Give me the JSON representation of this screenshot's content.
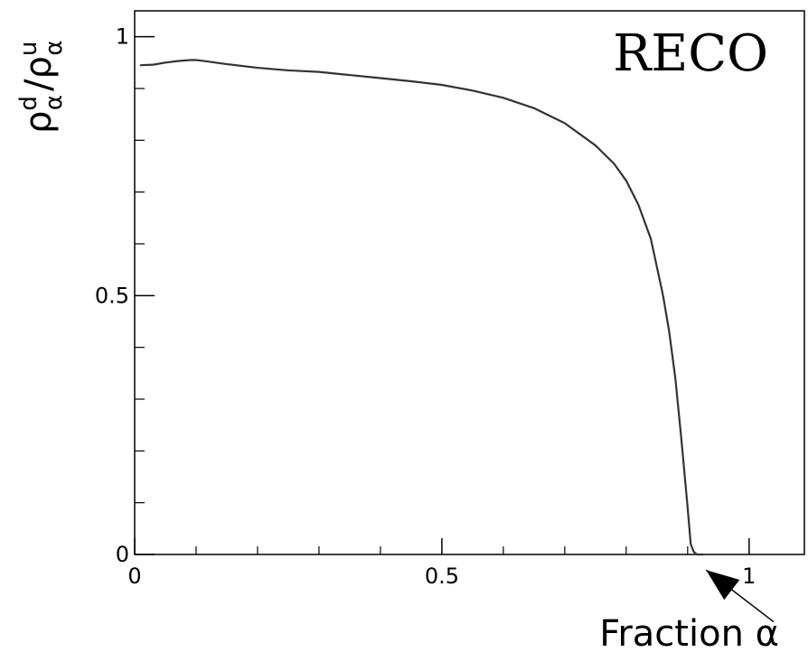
{
  "chart_data": {
    "type": "line",
    "title": "",
    "annotation": "RECO",
    "ylabel": {
      "main": "ρ",
      "sup_num": "d",
      "sub_num": "α",
      "slash": "/",
      "main_den": "ρ",
      "sup_den": "u",
      "sub_den": "α"
    },
    "xlabel": "Fraction α",
    "xlim": [
      0,
      1.09
    ],
    "ylim": [
      0,
      1.05
    ],
    "x_major_ticks": [
      0,
      0.5,
      1
    ],
    "x_major_tick_labels": [
      "0",
      "0.5",
      "1"
    ],
    "x_minor_ticks": [
      0.1,
      0.2,
      0.3,
      0.4,
      0.6,
      0.7,
      0.8,
      0.9
    ],
    "y_major_ticks": [
      0,
      0.5,
      1
    ],
    "y_major_tick_labels": [
      "0",
      "0.5",
      "1"
    ],
    "y_minor_ticks": [
      0.1,
      0.2,
      0.3,
      0.4,
      0.6,
      0.7,
      0.8,
      0.9
    ],
    "grid": false,
    "legend": "none",
    "series": [
      {
        "x": [
          0.01,
          0.03,
          0.05,
          0.07,
          0.09,
          0.1,
          0.12,
          0.15,
          0.2,
          0.25,
          0.3,
          0.35,
          0.4,
          0.45,
          0.5,
          0.55,
          0.6,
          0.65,
          0.7,
          0.75,
          0.78,
          0.8,
          0.82,
          0.84,
          0.86,
          0.87,
          0.88,
          0.89,
          0.9,
          0.905,
          0.91,
          0.915,
          0.92,
          0.925
        ],
        "values": [
          0.945,
          0.946,
          0.95,
          0.953,
          0.955,
          0.955,
          0.952,
          0.947,
          0.94,
          0.935,
          0.932,
          0.926,
          0.92,
          0.914,
          0.907,
          0.896,
          0.882,
          0.862,
          0.833,
          0.79,
          0.755,
          0.722,
          0.675,
          0.61,
          0.5,
          0.43,
          0.34,
          0.22,
          0.09,
          0.02,
          0.005,
          0.0,
          0.0,
          0.0
        ],
        "color": "#333333"
      }
    ],
    "arrow": {
      "from": [
        1.04,
        -0.13
      ],
      "to": [
        0.93,
        -0.03
      ],
      "color": "#000000"
    },
    "colors": {
      "axis": "#000000",
      "line": "#333333",
      "background": "#ffffff"
    }
  }
}
